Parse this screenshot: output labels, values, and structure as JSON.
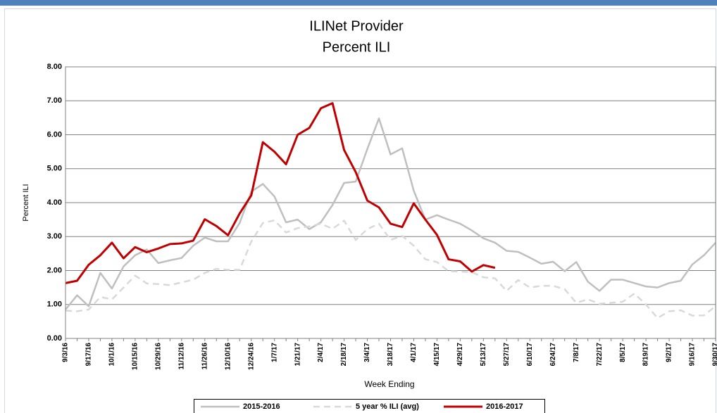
{
  "chart_data": {
    "type": "line",
    "title": "ILINet Provider",
    "subtitle": "Percent ILI",
    "x_label": "Week Ending",
    "y_label": "Percent ILI",
    "categories": [
      "9/3/16",
      null,
      "9/17/16",
      null,
      "10/1/16",
      null,
      "10/15/16",
      null,
      "10/29/16",
      null,
      "11/12/16",
      null,
      "11/26/16",
      null,
      "12/10/16",
      null,
      "12/24/16",
      null,
      "1/7/17",
      null,
      "1/21/17",
      null,
      "2/4/17",
      null,
      "2/18/17",
      null,
      "3/4/17",
      null,
      "3/18/17",
      null,
      "4/1/17",
      null,
      "4/15/17",
      null,
      "4/29/17",
      null,
      "5/13/17",
      null,
      "5/27/17",
      null,
      "6/10/17",
      null,
      "6/24/17",
      null,
      "7/8/17",
      null,
      "7/22/17",
      null,
      "8/5/17",
      null,
      "8/19/17",
      null,
      "9/2/17",
      null,
      "9/16/17",
      null,
      "9/30/17"
    ],
    "series": [
      {
        "name": "2015-2016",
        "color": "#bfbfbf",
        "dashed": false,
        "values": [
          0.85,
          1.27,
          0.95,
          1.93,
          1.47,
          2.12,
          2.45,
          2.62,
          2.22,
          2.3,
          2.37,
          2.73,
          2.97,
          2.86,
          2.86,
          3.4,
          4.32,
          4.55,
          4.18,
          3.42,
          3.5,
          3.22,
          3.42,
          3.93,
          4.58,
          4.62,
          5.58,
          6.48,
          5.42,
          5.6,
          4.35,
          3.5,
          3.63,
          3.5,
          3.38,
          3.18,
          2.95,
          2.82,
          2.58,
          2.55,
          2.38,
          2.2,
          2.26,
          1.98,
          2.25,
          1.67,
          1.4,
          1.73,
          1.73,
          1.63,
          1.53,
          1.5,
          1.63,
          1.7,
          2.18,
          2.45,
          2.82
        ]
      },
      {
        "name": "5 year % ILI (avg)",
        "color": "#d9d9d9",
        "dashed": true,
        "values": [
          0.82,
          0.8,
          0.85,
          1.22,
          1.15,
          1.5,
          1.85,
          1.62,
          1.6,
          1.57,
          1.65,
          1.73,
          1.93,
          2.05,
          2.02,
          2.02,
          2.85,
          3.4,
          3.48,
          3.12,
          3.25,
          3.3,
          3.38,
          3.23,
          3.47,
          2.9,
          3.22,
          3.38,
          2.9,
          3.02,
          2.73,
          2.33,
          2.25,
          1.98,
          1.97,
          1.95,
          1.8,
          1.77,
          1.4,
          1.72,
          1.5,
          1.55,
          1.55,
          1.45,
          1.05,
          1.15,
          1.02,
          1.05,
          1.08,
          1.32,
          1.0,
          0.6,
          0.8,
          0.83,
          0.67,
          0.68,
          0.95
        ]
      },
      {
        "name": "2016-2017",
        "color": "#c00000",
        "dashed": false,
        "values": [
          1.63,
          1.7,
          2.17,
          2.45,
          2.82,
          2.36,
          2.69,
          2.54,
          2.65,
          2.78,
          2.8,
          2.88,
          3.51,
          3.31,
          3.04,
          3.68,
          4.21,
          5.78,
          5.5,
          5.13,
          6.0,
          6.2,
          6.78,
          6.93,
          5.55,
          4.9,
          4.06,
          3.86,
          3.38,
          3.28,
          3.98,
          3.5,
          3.05,
          2.33,
          2.27,
          1.97,
          2.16,
          2.08,
          null,
          null,
          null,
          null,
          null,
          null,
          null,
          null,
          null,
          null,
          null,
          null,
          null,
          null,
          null,
          null,
          null,
          null,
          null
        ]
      }
    ],
    "ylim": [
      0,
      8
    ],
    "yticks": [
      {
        "value": 0,
        "label": "0.00"
      },
      {
        "value": 1,
        "label": "1.00"
      },
      {
        "value": 2,
        "label": "2.00"
      },
      {
        "value": 3,
        "label": "3.00"
      },
      {
        "value": 4,
        "label": "4.00"
      },
      {
        "value": 5,
        "label": "5.00"
      },
      {
        "value": 6,
        "label": "6.00"
      },
      {
        "value": 7,
        "label": "7.00"
      },
      {
        "value": 8,
        "label": "8.00"
      }
    ],
    "grid": true,
    "legend": "bottom"
  }
}
